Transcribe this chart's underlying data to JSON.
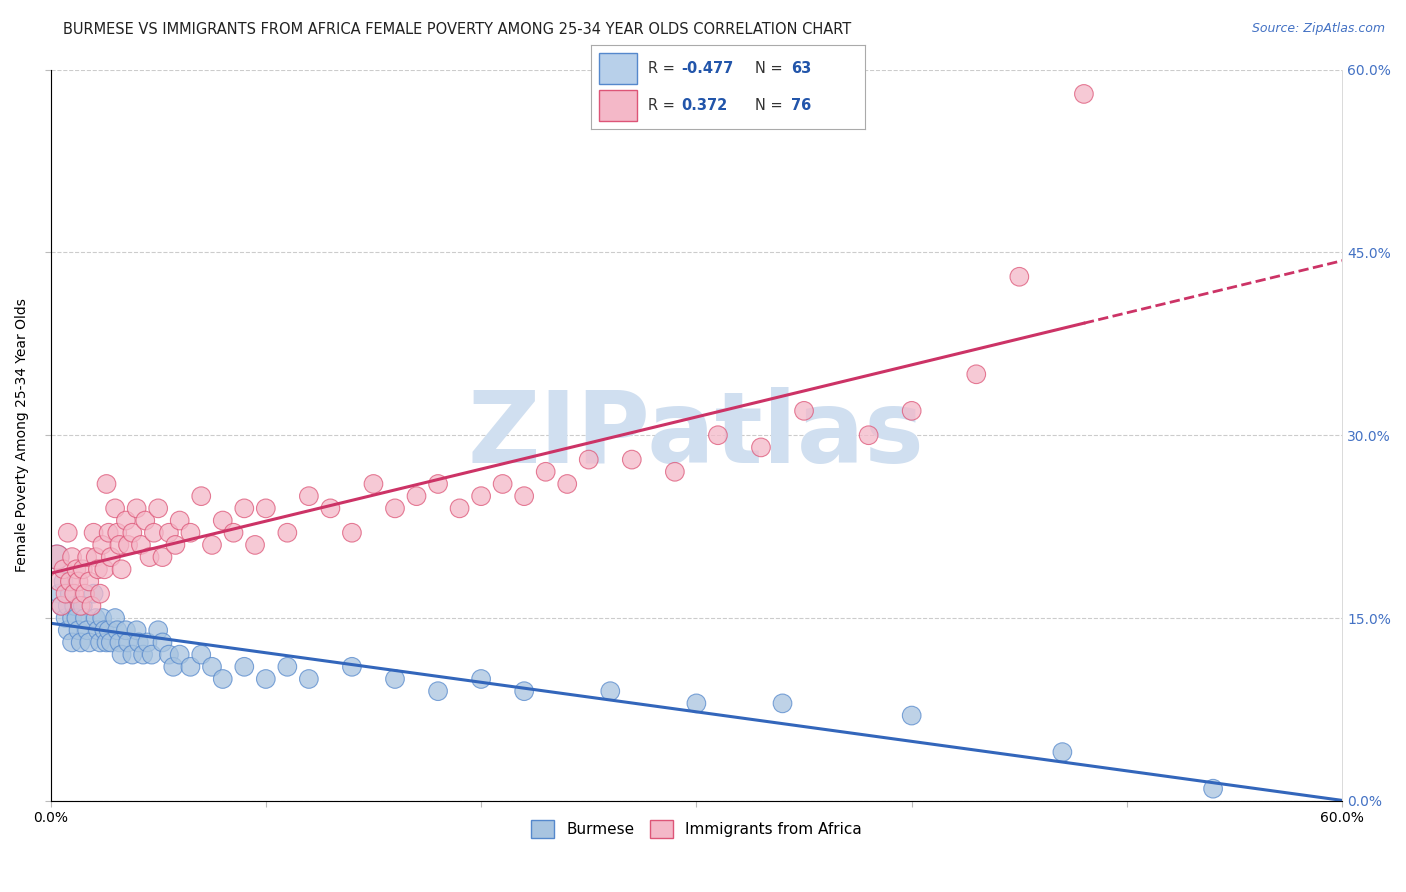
{
  "title": "BURMESE VS IMMIGRANTS FROM AFRICA FEMALE POVERTY AMONG 25-34 YEAR OLDS CORRELATION CHART",
  "source": "Source: ZipAtlas.com",
  "ylabel": "Female Poverty Among 25-34 Year Olds",
  "xlim": [
    0,
    0.6
  ],
  "ylim": [
    0,
    0.6
  ],
  "xticks": [
    0.0,
    0.1,
    0.2,
    0.3,
    0.4,
    0.5,
    0.6
  ],
  "xtick_labels": [
    "0.0%",
    "",
    "",
    "",
    "",
    "",
    "60.0%"
  ],
  "ytick_vals": [
    0.0,
    0.15,
    0.3,
    0.45,
    0.6
  ],
  "ytick_labels_right": [
    "0.0%",
    "15.0%",
    "30.0%",
    "45.0%",
    "60.0%"
  ],
  "grid_color": "#cccccc",
  "background_color": "#ffffff",
  "watermark": "ZIPatlas",
  "burmese": {
    "name": "Burmese",
    "R": -0.477,
    "N": 63,
    "scatter_color": "#a8c4e0",
    "edge_color": "#5588cc",
    "line_color": "#3366bb",
    "x": [
      0.003,
      0.004,
      0.005,
      0.006,
      0.007,
      0.008,
      0.008,
      0.009,
      0.01,
      0.01,
      0.011,
      0.012,
      0.013,
      0.014,
      0.015,
      0.016,
      0.017,
      0.018,
      0.02,
      0.021,
      0.022,
      0.023,
      0.024,
      0.025,
      0.026,
      0.027,
      0.028,
      0.03,
      0.031,
      0.032,
      0.033,
      0.035,
      0.036,
      0.038,
      0.04,
      0.041,
      0.043,
      0.045,
      0.047,
      0.05,
      0.052,
      0.055,
      0.057,
      0.06,
      0.065,
      0.07,
      0.075,
      0.08,
      0.09,
      0.1,
      0.11,
      0.12,
      0.14,
      0.16,
      0.18,
      0.2,
      0.22,
      0.26,
      0.3,
      0.34,
      0.4,
      0.47,
      0.54
    ],
    "y": [
      0.2,
      0.17,
      0.16,
      0.18,
      0.15,
      0.16,
      0.14,
      0.17,
      0.15,
      0.13,
      0.16,
      0.15,
      0.14,
      0.13,
      0.16,
      0.15,
      0.14,
      0.13,
      0.17,
      0.15,
      0.14,
      0.13,
      0.15,
      0.14,
      0.13,
      0.14,
      0.13,
      0.15,
      0.14,
      0.13,
      0.12,
      0.14,
      0.13,
      0.12,
      0.14,
      0.13,
      0.12,
      0.13,
      0.12,
      0.14,
      0.13,
      0.12,
      0.11,
      0.12,
      0.11,
      0.12,
      0.11,
      0.1,
      0.11,
      0.1,
      0.11,
      0.1,
      0.11,
      0.1,
      0.09,
      0.1,
      0.09,
      0.09,
      0.08,
      0.08,
      0.07,
      0.04,
      0.01
    ],
    "sizes": [
      300,
      180,
      180,
      180,
      180,
      180,
      180,
      180,
      180,
      180,
      180,
      180,
      180,
      180,
      180,
      180,
      180,
      180,
      180,
      180,
      180,
      180,
      180,
      180,
      180,
      180,
      180,
      180,
      180,
      180,
      180,
      180,
      180,
      180,
      180,
      180,
      180,
      180,
      180,
      180,
      180,
      180,
      180,
      180,
      180,
      180,
      180,
      180,
      180,
      180,
      180,
      180,
      180,
      180,
      180,
      180,
      180,
      180,
      180,
      180,
      180,
      180,
      180
    ]
  },
  "africa": {
    "name": "Immigrants from Africa",
    "R": 0.372,
    "N": 76,
    "scatter_color": "#f4b8c8",
    "edge_color": "#dd5577",
    "line_color": "#cc3366",
    "x": [
      0.003,
      0.004,
      0.005,
      0.006,
      0.007,
      0.008,
      0.009,
      0.01,
      0.011,
      0.012,
      0.013,
      0.014,
      0.015,
      0.016,
      0.017,
      0.018,
      0.019,
      0.02,
      0.021,
      0.022,
      0.023,
      0.024,
      0.025,
      0.026,
      0.027,
      0.028,
      0.03,
      0.031,
      0.032,
      0.033,
      0.035,
      0.036,
      0.038,
      0.04,
      0.042,
      0.044,
      0.046,
      0.048,
      0.05,
      0.052,
      0.055,
      0.058,
      0.06,
      0.065,
      0.07,
      0.075,
      0.08,
      0.085,
      0.09,
      0.095,
      0.1,
      0.11,
      0.12,
      0.13,
      0.14,
      0.15,
      0.16,
      0.17,
      0.18,
      0.19,
      0.2,
      0.21,
      0.22,
      0.23,
      0.24,
      0.25,
      0.27,
      0.29,
      0.31,
      0.33,
      0.35,
      0.38,
      0.4,
      0.43,
      0.45,
      0.48
    ],
    "y": [
      0.2,
      0.18,
      0.16,
      0.19,
      0.17,
      0.22,
      0.18,
      0.2,
      0.17,
      0.19,
      0.18,
      0.16,
      0.19,
      0.17,
      0.2,
      0.18,
      0.16,
      0.22,
      0.2,
      0.19,
      0.17,
      0.21,
      0.19,
      0.26,
      0.22,
      0.2,
      0.24,
      0.22,
      0.21,
      0.19,
      0.23,
      0.21,
      0.22,
      0.24,
      0.21,
      0.23,
      0.2,
      0.22,
      0.24,
      0.2,
      0.22,
      0.21,
      0.23,
      0.22,
      0.25,
      0.21,
      0.23,
      0.22,
      0.24,
      0.21,
      0.24,
      0.22,
      0.25,
      0.24,
      0.22,
      0.26,
      0.24,
      0.25,
      0.26,
      0.24,
      0.25,
      0.26,
      0.25,
      0.27,
      0.26,
      0.28,
      0.28,
      0.27,
      0.3,
      0.29,
      0.32,
      0.3,
      0.32,
      0.35,
      0.43,
      0.58
    ],
    "sizes": [
      300,
      180,
      180,
      180,
      180,
      180,
      180,
      180,
      180,
      180,
      180,
      180,
      180,
      180,
      180,
      180,
      180,
      180,
      180,
      180,
      180,
      180,
      180,
      180,
      180,
      180,
      180,
      180,
      180,
      180,
      180,
      180,
      180,
      180,
      180,
      180,
      180,
      180,
      180,
      180,
      180,
      180,
      180,
      180,
      180,
      180,
      180,
      180,
      180,
      180,
      180,
      180,
      180,
      180,
      180,
      180,
      180,
      180,
      180,
      180,
      180,
      180,
      180,
      180,
      180,
      180,
      180,
      180,
      180,
      180,
      180,
      180,
      180,
      180,
      180,
      180
    ]
  },
  "legend_box": {
    "burmese_fill": "#b8d0ea",
    "burmese_edge": "#5588cc",
    "africa_fill": "#f4b8c8",
    "africa_edge": "#dd5577",
    "text_color": "#2255aa",
    "border_color": "#aaaaaa"
  },
  "title_fontsize": 10.5,
  "ylabel_fontsize": 10,
  "tick_fontsize": 10,
  "right_tick_color": "#4472c4",
  "watermark_color": "#d0dff0",
  "watermark_fontsize": 72,
  "africa_trend_solid_end": 0.48,
  "africa_trend_dashed_end": 0.6
}
